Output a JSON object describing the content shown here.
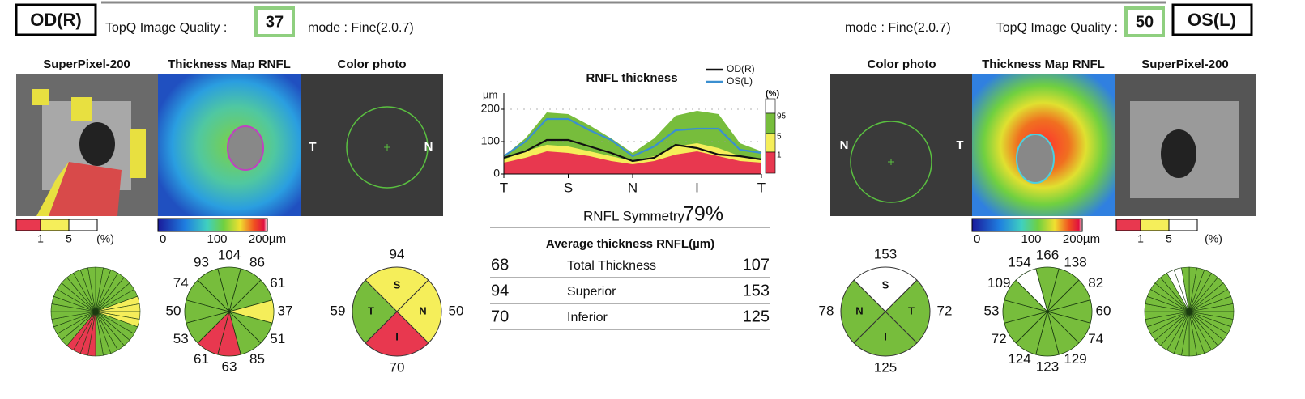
{
  "od": {
    "eye": "OD(R)",
    "quality_label": "TopQ Image Quality :",
    "quality": 37,
    "mode": "mode : Fine(2.0.7)",
    "panels": [
      "SuperPixel-200",
      "Thickness Map RNFL",
      "Color photo"
    ],
    "photo_labels": [
      "T",
      "N"
    ],
    "superpixel_legend": {
      "ticks": [
        1,
        5
      ],
      "unit": "(%)"
    },
    "colorbar": [
      0,
      100,
      "200µm"
    ],
    "clock": [
      {
        "value": 104,
        "color": "#77bd3c"
      },
      {
        "value": 86,
        "color": "#77bd3c"
      },
      {
        "value": 61,
        "color": "#77bd3c"
      },
      {
        "value": 37,
        "color": "#f5ee5a"
      },
      {
        "value": 51,
        "color": "#77bd3c"
      },
      {
        "value": 85,
        "color": "#77bd3c"
      },
      {
        "value": 63,
        "color": "#e8384f"
      },
      {
        "value": 61,
        "color": "#e8384f"
      },
      {
        "value": 53,
        "color": "#77bd3c"
      },
      {
        "value": 50,
        "color": "#77bd3c"
      },
      {
        "value": 74,
        "color": "#77bd3c"
      },
      {
        "value": 93,
        "color": "#77bd3c"
      }
    ],
    "quadrants": [
      {
        "letter": "S",
        "value": 94,
        "color": "#f5ee5a"
      },
      {
        "letter": "N",
        "value": 50,
        "color": "#f5ee5a"
      },
      {
        "letter": "I",
        "value": 70,
        "color": "#e8384f"
      },
      {
        "letter": "T",
        "value": 59,
        "color": "#77bd3c"
      }
    ]
  },
  "os": {
    "eye": "OS(L)",
    "quality_label": "TopQ Image Quality :",
    "quality": 50,
    "mode": "mode : Fine(2.0.7)",
    "panels": [
      "SuperPixel-200",
      "Thickness Map RNFL",
      "Color photo"
    ],
    "photo_labels": [
      "N",
      "T"
    ],
    "superpixel_legend": {
      "ticks": [
        1,
        5
      ],
      "unit": "(%)"
    },
    "colorbar": [
      0,
      100,
      "200µm"
    ],
    "clock": [
      {
        "value": 166,
        "color": "#77bd3c"
      },
      {
        "value": 138,
        "color": "#77bd3c"
      },
      {
        "value": 82,
        "color": "#77bd3c"
      },
      {
        "value": 60,
        "color": "#77bd3c"
      },
      {
        "value": 74,
        "color": "#77bd3c"
      },
      {
        "value": 129,
        "color": "#77bd3c"
      },
      {
        "value": 123,
        "color": "#77bd3c"
      },
      {
        "value": 124,
        "color": "#77bd3c"
      },
      {
        "value": 72,
        "color": "#77bd3c"
      },
      {
        "value": 53,
        "color": "#77bd3c"
      },
      {
        "value": 109,
        "color": "#77bd3c"
      },
      {
        "value": 154,
        "color": "#ffffff"
      }
    ],
    "quadrants": [
      {
        "letter": "S",
        "value": 153,
        "color": "#ffffff"
      },
      {
        "letter": "T",
        "value": 72,
        "color": "#77bd3c"
      },
      {
        "letter": "I",
        "value": 125,
        "color": "#77bd3c"
      },
      {
        "letter": "N",
        "value": 78,
        "color": "#77bd3c"
      }
    ]
  },
  "chart_data": {
    "type": "line",
    "title": "RNFL thickness",
    "y_label": "µm",
    "x": [
      0,
      1,
      2,
      3,
      4,
      5,
      6,
      7,
      8,
      9,
      10,
      11,
      12
    ],
    "xlim": [
      0,
      12
    ],
    "xticks": [
      {
        "value": 0,
        "label": "T"
      },
      {
        "value": 3,
        "label": "S"
      },
      {
        "value": 6,
        "label": "N"
      },
      {
        "value": 9,
        "label": "I"
      },
      {
        "value": 12,
        "label": "T"
      }
    ],
    "ylim": [
      0,
      250
    ],
    "yticks": [
      0,
      100,
      200
    ],
    "grid": true,
    "series": [
      {
        "name": "OD(R)",
        "color": "#111111",
        "values": [
          50,
          70,
          105,
          105,
          85,
          65,
          40,
          50,
          90,
          80,
          60,
          55,
          45
        ]
      },
      {
        "name": "OS(L)",
        "color": "#3a8fd0",
        "values": [
          55,
          100,
          170,
          170,
          135,
          105,
          55,
          85,
          135,
          140,
          140,
          75,
          65
        ]
      }
    ],
    "percentile_title": "(%)",
    "normative": [
      {
        "percentile": 95,
        "color": "#77bd3c",
        "values": [
          55,
          110,
          190,
          185,
          150,
          110,
          65,
          110,
          180,
          195,
          185,
          95,
          70
        ]
      },
      {
        "percentile": 5,
        "color": "#f5ee5a",
        "values": [
          45,
          70,
          90,
          85,
          70,
          55,
          40,
          55,
          85,
          95,
          80,
          55,
          45
        ]
      },
      {
        "percentile": 1,
        "color": "#e8384f",
        "values": [
          35,
          50,
          70,
          65,
          55,
          40,
          30,
          40,
          60,
          70,
          55,
          40,
          35
        ]
      }
    ]
  },
  "symmetry": {
    "label": "RNFL Symmetry",
    "value": "79%"
  },
  "average": {
    "title": "Average thickness RNFL(µm)",
    "rows": [
      [
        68,
        "Total Thickness",
        107
      ],
      [
        94,
        "Superior",
        153
      ],
      [
        70,
        "Inferior",
        125
      ]
    ]
  }
}
